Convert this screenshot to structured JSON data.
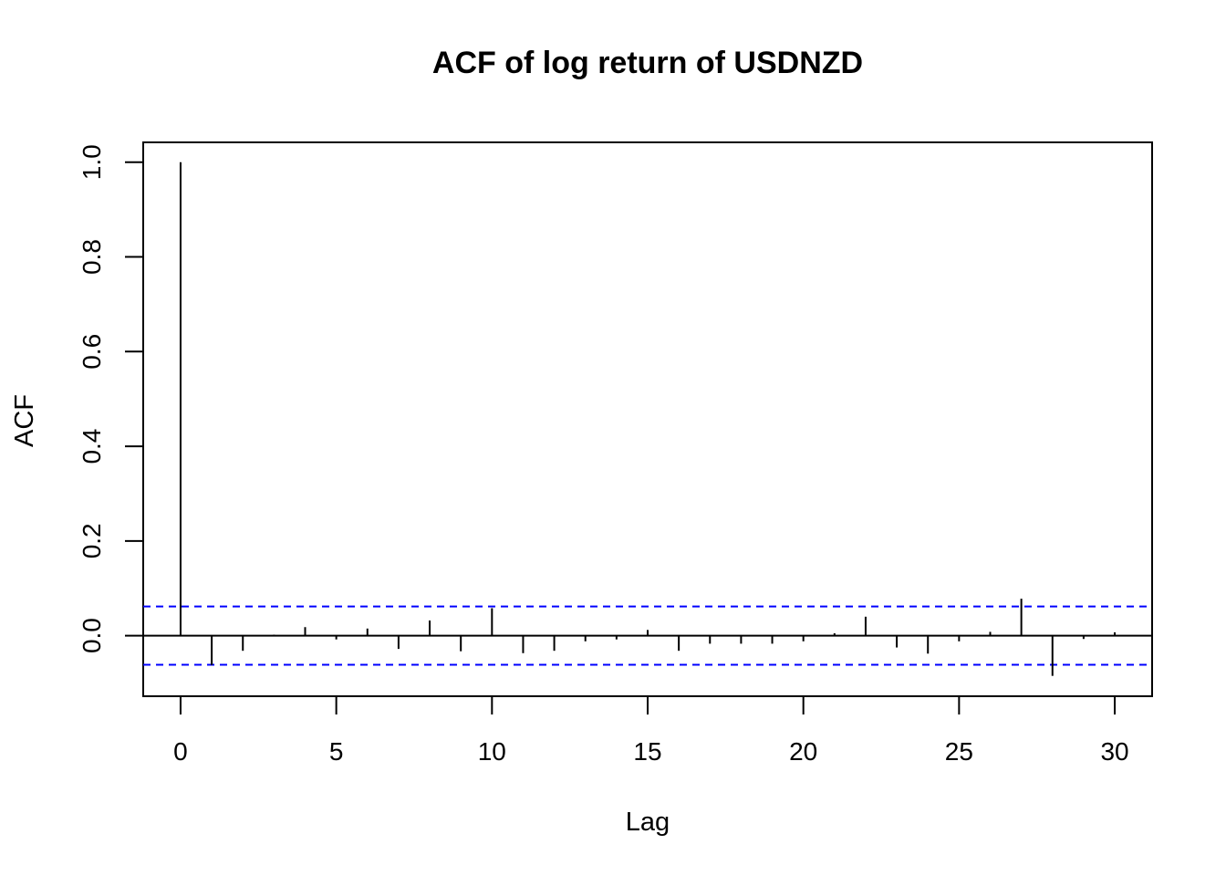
{
  "chart_data": {
    "type": "bar",
    "title": "ACF of log return of USDNZD",
    "xlabel": "Lag",
    "ylabel": "ACF",
    "xlim": [
      -1.2,
      31.2
    ],
    "ylim": [
      -0.128,
      1.042
    ],
    "x_ticks": [
      0,
      5,
      10,
      15,
      20,
      25,
      30
    ],
    "y_ticks": [
      0.0,
      0.2,
      0.4,
      0.6,
      0.8,
      1.0
    ],
    "y_tick_labels": [
      "0.0",
      "0.2",
      "0.4",
      "0.6",
      "0.8",
      "1.0"
    ],
    "zero_line": 0,
    "confidence_bound": 0.0615,
    "confidence_color": "#0000ff",
    "lags": [
      0,
      1,
      2,
      3,
      4,
      5,
      6,
      7,
      8,
      9,
      10,
      11,
      12,
      13,
      14,
      15,
      16,
      17,
      18,
      19,
      20,
      21,
      22,
      23,
      24,
      25,
      26,
      27,
      28,
      29,
      30
    ],
    "acf": [
      1.0,
      -0.062,
      -0.032,
      0.002,
      0.018,
      -0.008,
      0.015,
      -0.028,
      0.032,
      -0.033,
      0.058,
      -0.037,
      -0.032,
      -0.012,
      -0.008,
      0.012,
      -0.032,
      -0.017,
      -0.017,
      -0.017,
      -0.012,
      0.005,
      0.04,
      -0.025,
      -0.038,
      -0.012,
      0.008,
      0.078,
      -0.085,
      -0.007,
      0.007
    ],
    "grid": false,
    "legend": "none"
  }
}
